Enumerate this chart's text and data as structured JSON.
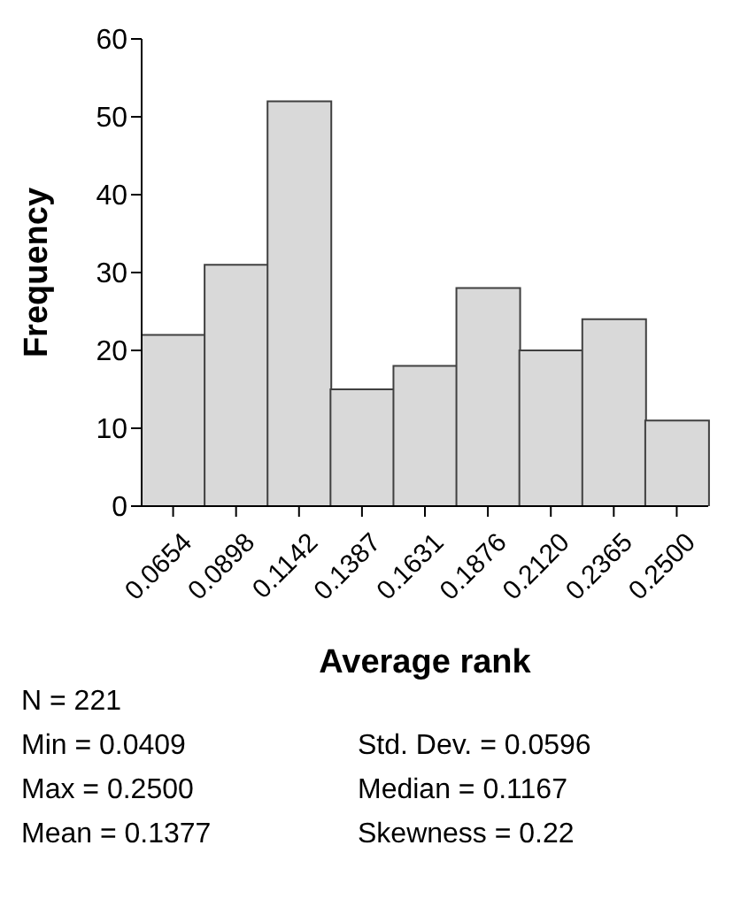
{
  "chart_data": {
    "type": "bar",
    "categories": [
      "0.0654",
      "0.0898",
      "0.1142",
      "0.1387",
      "0.1631",
      "0.1876",
      "0.2120",
      "0.2365",
      "0.2500"
    ],
    "values": [
      22,
      31,
      52,
      15,
      18,
      28,
      20,
      24,
      11
    ],
    "color": "#d9d9d9",
    "xlabel": "Average rank",
    "ylabel": "Frequency",
    "ylim": [
      0,
      60
    ],
    "yticks": [
      0,
      10,
      20,
      30,
      40,
      50,
      60
    ],
    "annotations": [
      "N = 221",
      "Min = 0.0409",
      "Std. Dev. = 0.0596",
      "Max = 0.2500",
      "Median = 0.1167",
      "Mean = 0.1377",
      "Skewness = 0.22"
    ]
  }
}
